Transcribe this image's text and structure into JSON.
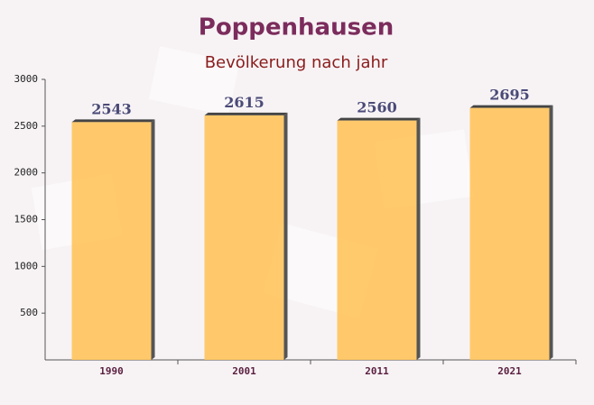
{
  "chart_data": {
    "type": "bar",
    "title": "Poppenhausen",
    "subtitle": "Bevölkerung nach jahr",
    "categories": [
      "1990",
      "2001",
      "2011",
      "2021"
    ],
    "values": [
      2543,
      2615,
      2560,
      2695
    ],
    "color": "#ffc45c",
    "ylim": [
      0,
      3000
    ],
    "yticks": [
      500,
      1000,
      1500,
      2000,
      2500,
      3000
    ]
  }
}
